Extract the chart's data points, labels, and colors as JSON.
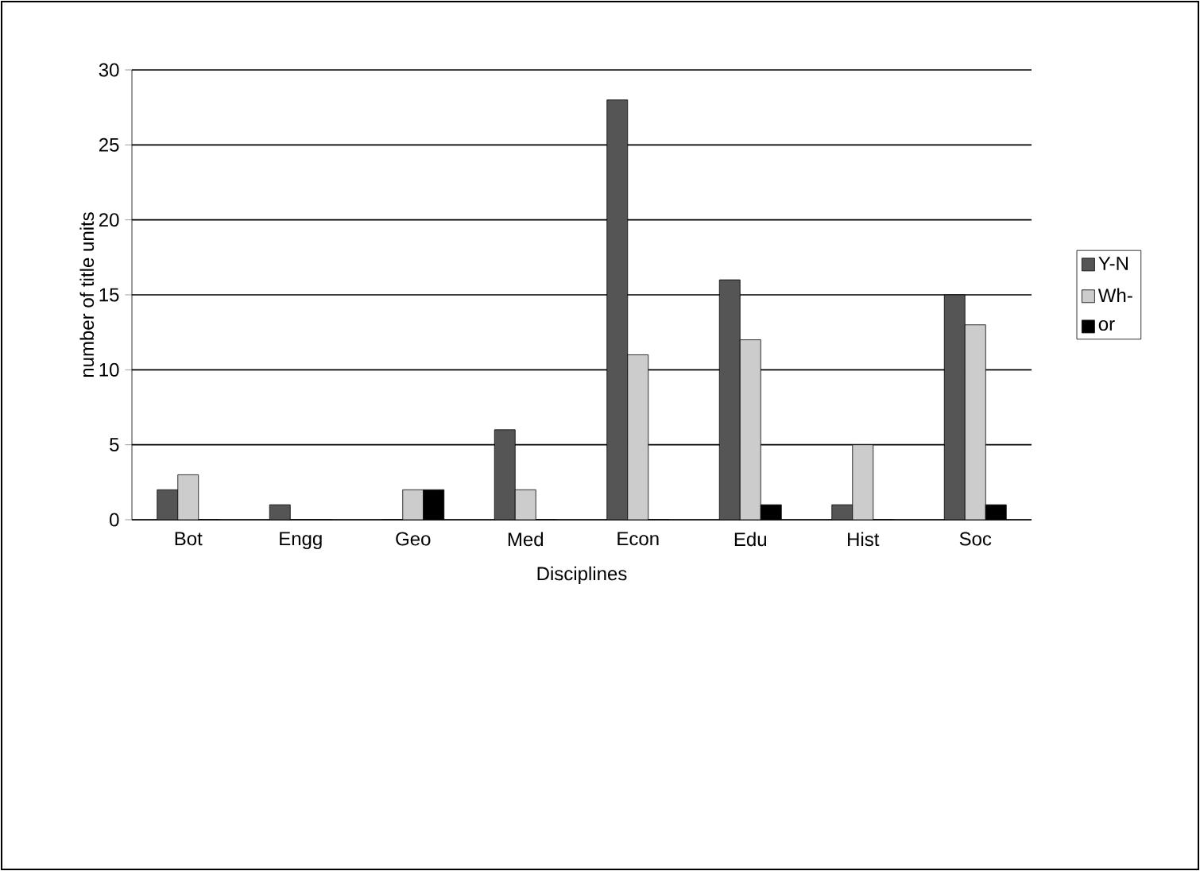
{
  "chart_data": {
    "type": "bar",
    "xlabel": "Disciplines",
    "ylabel": "number of title units",
    "categories": [
      "Bot",
      "Engg",
      "Geo",
      "Med",
      "Econ",
      "Edu",
      "Hist",
      "Soc"
    ],
    "series": [
      {
        "name": "Y-N",
        "color": "#555555",
        "values": [
          2,
          1,
          0,
          6,
          28,
          16,
          1,
          15
        ]
      },
      {
        "name": "Wh-",
        "color": "#cccccc",
        "values": [
          3,
          0,
          2,
          2,
          11,
          12,
          5,
          13
        ]
      },
      {
        "name": "or",
        "color": "#000000",
        "values": [
          0,
          0,
          2,
          0,
          0,
          1,
          0,
          1
        ]
      }
    ],
    "ylim": [
      0,
      30
    ],
    "yticks": [
      0,
      5,
      10,
      15,
      20,
      25,
      30
    ],
    "grid": "y",
    "legend": "right"
  }
}
